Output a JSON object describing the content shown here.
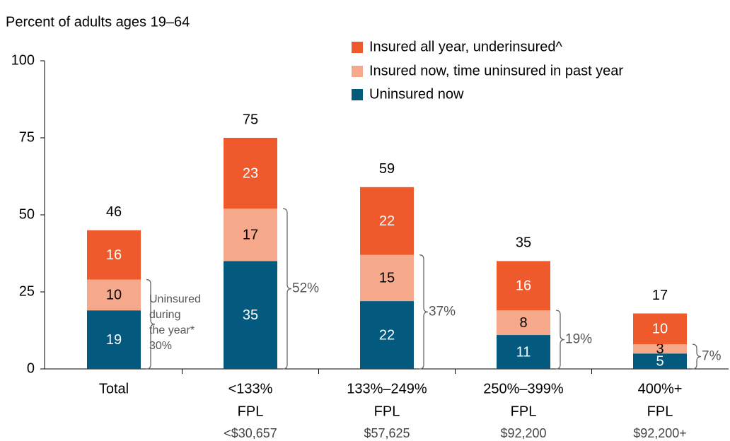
{
  "chart_data": {
    "type": "stacked_bar",
    "title": "Percent of adults ages 19–64",
    "categories": [
      "Total",
      "<133% FPL",
      "133%–249% FPL",
      "250%–399% FPL",
      "400%+ FPL"
    ],
    "sublabels": [
      null,
      "<$30,657",
      "$57,625",
      "$92,200",
      "$92,200+"
    ],
    "series": [
      {
        "name": "Uninsured now",
        "color": "#035a7e",
        "values": [
          19,
          35,
          22,
          11,
          5
        ]
      },
      {
        "name": "Insured now, time uninsured in past year",
        "color": "#f6a98a",
        "values": [
          10,
          17,
          15,
          8,
          3
        ]
      },
      {
        "name": "Insured all year, underinsured^",
        "color": "#ee5a2b",
        "values": [
          16,
          23,
          22,
          16,
          10
        ]
      }
    ],
    "totals": [
      46,
      75,
      59,
      35,
      17
    ],
    "bracket_note": [
      "Uninsured",
      "during",
      "the year*"
    ],
    "bracket_values": [
      30,
      52,
      37,
      19,
      7
    ],
    "bracket_value_labels": [
      "30%",
      "52%",
      "37%",
      "19%",
      "7%"
    ],
    "ylim": [
      0,
      100
    ],
    "yticks": [
      0,
      25,
      50,
      75,
      100
    ]
  }
}
